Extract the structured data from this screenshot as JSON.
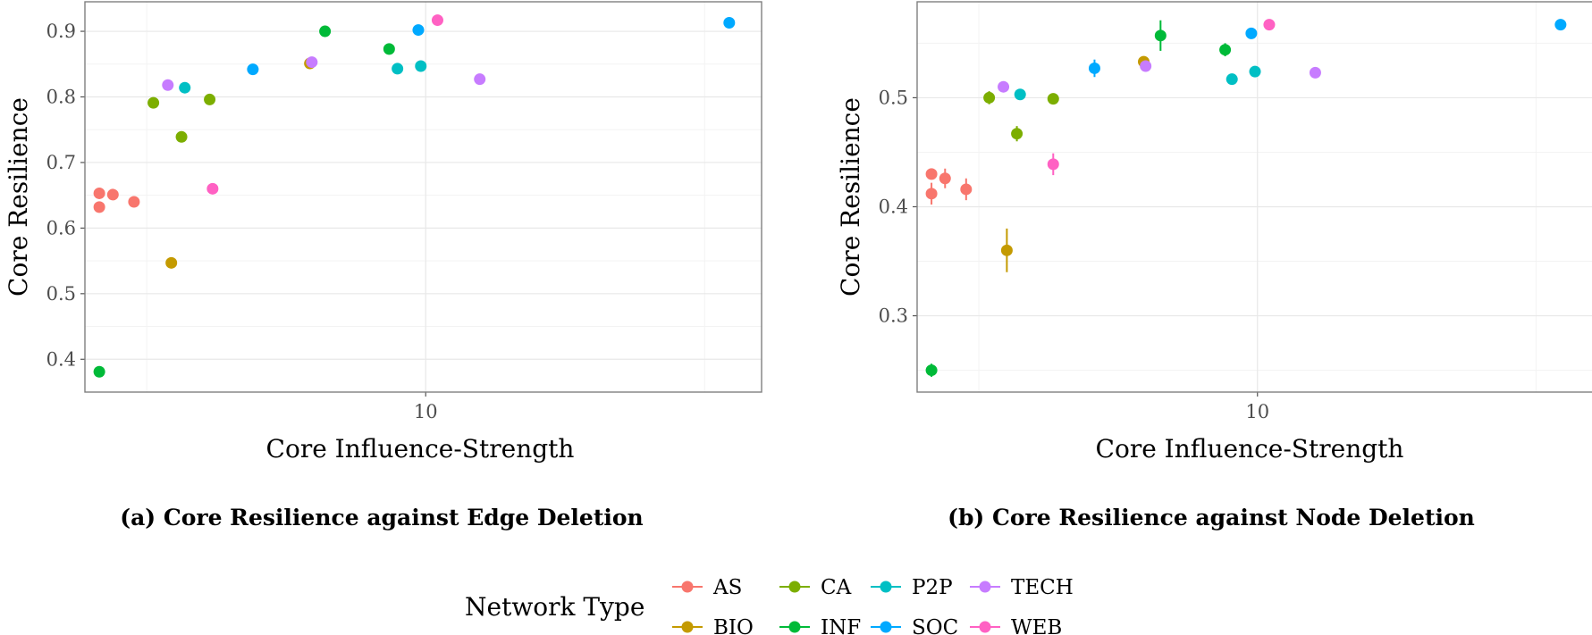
{
  "chart_data": [
    {
      "type": "scatter",
      "caption": "(a) Core Resilience against Edge Deletion",
      "xlabel": "Core Influence-Strength",
      "ylabel": "Core Resilience",
      "x_scale": "log10",
      "xlim": [
        2.45,
        40
      ],
      "ylim": [
        0.35,
        0.945
      ],
      "x_ticks": [
        10
      ],
      "y_ticks": [
        0.4,
        0.5,
        0.6,
        0.7,
        0.8,
        0.9
      ],
      "grid": true,
      "series": [
        {
          "name": "AS",
          "points": [
            {
              "x": 2.6,
              "y": 0.653
            },
            {
              "x": 2.6,
              "y": 0.632
            },
            {
              "x": 2.75,
              "y": 0.651
            },
            {
              "x": 3.0,
              "y": 0.64
            }
          ]
        },
        {
          "name": "BIO",
          "points": [
            {
              "x": 3.5,
              "y": 0.547
            },
            {
              "x": 6.2,
              "y": 0.851
            }
          ]
        },
        {
          "name": "CA",
          "points": [
            {
              "x": 3.25,
              "y": 0.791
            },
            {
              "x": 3.65,
              "y": 0.739
            },
            {
              "x": 4.1,
              "y": 0.796
            }
          ]
        },
        {
          "name": "INF",
          "points": [
            {
              "x": 2.6,
              "y": 0.381
            },
            {
              "x": 6.6,
              "y": 0.9
            },
            {
              "x": 8.6,
              "y": 0.873
            }
          ]
        },
        {
          "name": "P2P",
          "points": [
            {
              "x": 3.7,
              "y": 0.814
            },
            {
              "x": 8.9,
              "y": 0.843
            },
            {
              "x": 9.8,
              "y": 0.847
            }
          ]
        },
        {
          "name": "SOC",
          "points": [
            {
              "x": 4.9,
              "y": 0.842
            },
            {
              "x": 9.7,
              "y": 0.902
            },
            {
              "x": 35.0,
              "y": 0.913
            }
          ]
        },
        {
          "name": "TECH",
          "points": [
            {
              "x": 3.45,
              "y": 0.818
            },
            {
              "x": 6.25,
              "y": 0.853
            },
            {
              "x": 12.5,
              "y": 0.827
            }
          ]
        },
        {
          "name": "WEB",
          "points": [
            {
              "x": 4.15,
              "y": 0.66
            },
            {
              "x": 10.5,
              "y": 0.917
            }
          ]
        }
      ]
    },
    {
      "type": "scatter",
      "caption": "(b) Core Resilience against Node Deletion",
      "xlabel": "Core Influence-Strength",
      "ylabel": "Core Resilience",
      "x_scale": "log10",
      "xlim": [
        2.45,
        40
      ],
      "ylim": [
        0.23,
        0.588
      ],
      "x_ticks": [
        10
      ],
      "y_ticks": [
        0.3,
        0.4,
        0.5
      ],
      "grid": true,
      "error_bars": true,
      "series": [
        {
          "name": "AS",
          "points": [
            {
              "x": 2.6,
              "y": 0.43,
              "err": 0.004
            },
            {
              "x": 2.6,
              "y": 0.412,
              "err": 0.01
            },
            {
              "x": 2.75,
              "y": 0.426,
              "err": 0.009
            },
            {
              "x": 3.0,
              "y": 0.416,
              "err": 0.01
            }
          ]
        },
        {
          "name": "BIO",
          "points": [
            {
              "x": 3.55,
              "y": 0.36,
              "err": 0.02
            },
            {
              "x": 6.25,
              "y": 0.533,
              "err": 0.005
            }
          ]
        },
        {
          "name": "CA",
          "points": [
            {
              "x": 3.3,
              "y": 0.5,
              "err": 0.006
            },
            {
              "x": 3.7,
              "y": 0.467,
              "err": 0.007
            },
            {
              "x": 4.3,
              "y": 0.499,
              "err": 0.004
            }
          ]
        },
        {
          "name": "INF",
          "points": [
            {
              "x": 2.6,
              "y": 0.25,
              "err": 0.006
            },
            {
              "x": 6.7,
              "y": 0.557,
              "err": 0.014
            },
            {
              "x": 8.75,
              "y": 0.544,
              "err": 0.006
            }
          ]
        },
        {
          "name": "P2P",
          "points": [
            {
              "x": 3.75,
              "y": 0.503,
              "err": 0.003
            },
            {
              "x": 9.0,
              "y": 0.517,
              "err": 0.003
            },
            {
              "x": 9.9,
              "y": 0.524,
              "err": 0.003
            }
          ]
        },
        {
          "name": "SOC",
          "points": [
            {
              "x": 5.1,
              "y": 0.527,
              "err": 0.008
            },
            {
              "x": 9.75,
              "y": 0.559,
              "err": 0.003
            },
            {
              "x": 35.0,
              "y": 0.567,
              "err": 0.002
            }
          ]
        },
        {
          "name": "TECH",
          "points": [
            {
              "x": 3.5,
              "y": 0.51,
              "err": 0.003
            },
            {
              "x": 6.3,
              "y": 0.529,
              "err": 0.005
            },
            {
              "x": 12.7,
              "y": 0.523,
              "err": 0.003
            }
          ]
        },
        {
          "name": "WEB",
          "points": [
            {
              "x": 4.3,
              "y": 0.439,
              "err": 0.01
            },
            {
              "x": 10.5,
              "y": 0.567,
              "err": 0.003
            }
          ]
        }
      ]
    }
  ],
  "legend": {
    "title": "Network Type",
    "placement": "bottom",
    "entries": [
      {
        "name": "AS",
        "color": "#F8766D"
      },
      {
        "name": "BIO",
        "color": "#C49A00"
      },
      {
        "name": "CA",
        "color": "#7CAE00"
      },
      {
        "name": "INF",
        "color": "#00BA38"
      },
      {
        "name": "P2P",
        "color": "#00BFC4"
      },
      {
        "name": "SOC",
        "color": "#00A9FF"
      },
      {
        "name": "TECH",
        "color": "#C77CFF"
      },
      {
        "name": "WEB",
        "color": "#FF61C3"
      }
    ]
  }
}
